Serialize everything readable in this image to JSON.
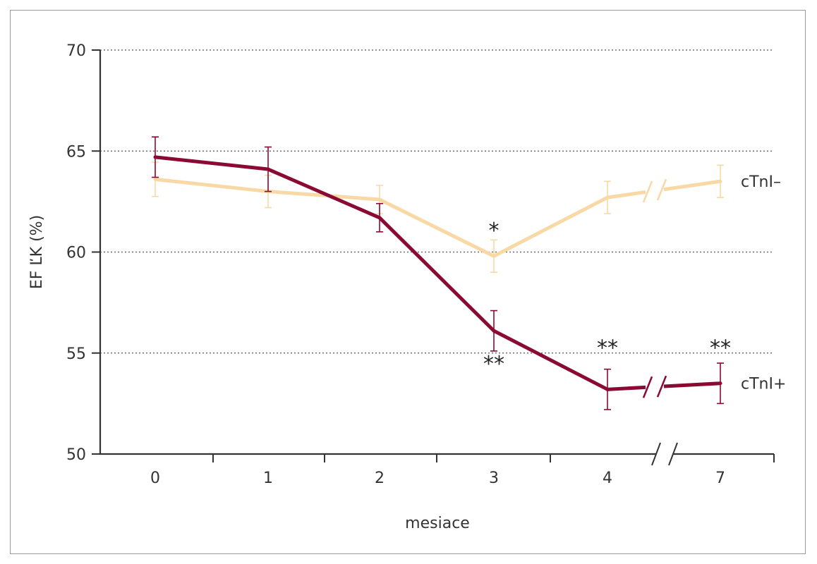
{
  "chart_data": {
    "type": "line",
    "xlabel": "mesiace",
    "ylabel": "EF ĽK (%)",
    "ylim": [
      50,
      70
    ],
    "yticks": [
      "50",
      "55",
      "60",
      "65",
      "70"
    ],
    "categories": [
      "0",
      "1",
      "2",
      "3",
      "4",
      "7"
    ],
    "axis_break": "between 4 and 7",
    "grid": "horizontal dotted",
    "series": [
      {
        "name": "cTnI–",
        "color": "#f8d9a5",
        "values": [
          63.6,
          63.0,
          62.6,
          59.8,
          62.7,
          63.5
        ],
        "error": [
          0.85,
          0.8,
          0.7,
          0.8,
          0.8,
          0.8
        ]
      },
      {
        "name": "cTnI+",
        "color": "#8b0a33",
        "values": [
          64.7,
          64.1,
          61.7,
          56.1,
          53.2,
          53.5
        ],
        "error": [
          1.0,
          1.1,
          0.7,
          1.0,
          1.0,
          1.0
        ]
      }
    ],
    "annotations": [
      {
        "text": "*",
        "category": "3",
        "y": 61.2
      },
      {
        "text": "**",
        "category": "3",
        "y": 54.6
      },
      {
        "text": "**",
        "category": "4",
        "y": 55.4
      },
      {
        "text": "**",
        "category": "7",
        "y": 55.4
      }
    ]
  }
}
